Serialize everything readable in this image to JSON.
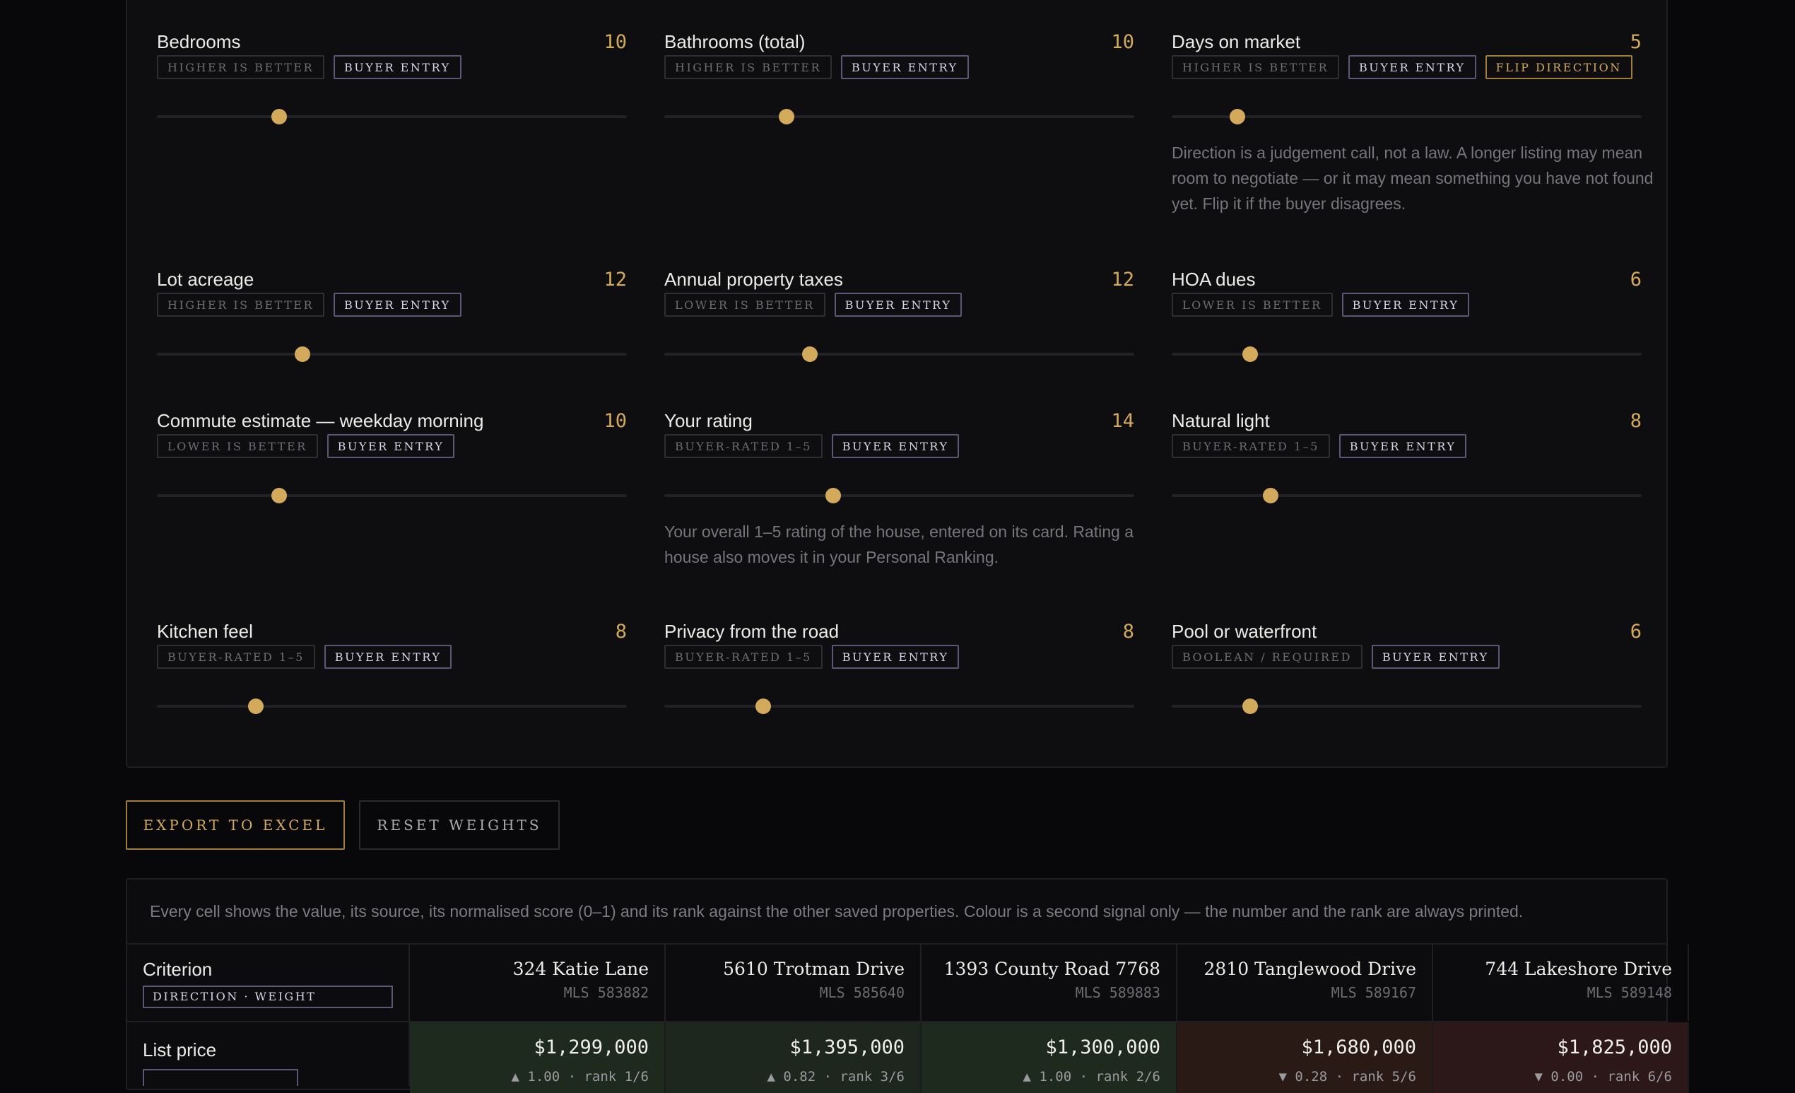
{
  "criteria": [
    {
      "name": "Bedrooms",
      "weight": "10",
      "direction_tag": "Higher is better",
      "source_tag": "Buyer entry",
      "slider_value": 0.26
    },
    {
      "name": "Bathrooms (total)",
      "weight": "10",
      "direction_tag": "Higher is better",
      "source_tag": "Buyer entry",
      "slider_value": 0.26
    },
    {
      "name": "Days on market",
      "weight": "5",
      "direction_tag": "Higher is better",
      "source_tag": "Buyer entry",
      "flip_label": "Flip direction",
      "slider_value": 0.14,
      "note": "Direction is a judgement call, not a law. A longer listing may mean room to negotiate — or it may mean something you have not found yet. Flip it if the buyer disagrees."
    },
    {
      "name": "Lot acreage",
      "weight": "12",
      "direction_tag": "Higher is better",
      "source_tag": "Buyer entry",
      "slider_value": 0.31
    },
    {
      "name": "Annual property taxes",
      "weight": "12",
      "direction_tag": "Lower is better",
      "source_tag": "Buyer entry",
      "slider_value": 0.31
    },
    {
      "name": "HOA dues",
      "weight": "6",
      "direction_tag": "Lower is better",
      "source_tag": "Buyer entry",
      "slider_value": 0.167
    },
    {
      "name": "Commute estimate — weekday morning",
      "weight": "10",
      "direction_tag": "Lower is better",
      "source_tag": "Buyer entry",
      "slider_value": 0.26
    },
    {
      "name": "Your rating",
      "weight": "14",
      "direction_tag": "Buyer-rated 1–5",
      "source_tag": "Buyer entry",
      "slider_value": 0.36,
      "note": "Your overall 1–5 rating of the house, entered on its card. Rating a house also moves it in your Personal Ranking."
    },
    {
      "name": "Natural light",
      "weight": "8",
      "direction_tag": "Buyer-rated 1–5",
      "source_tag": "Buyer entry",
      "slider_value": 0.21
    },
    {
      "name": "Kitchen feel",
      "weight": "8",
      "direction_tag": "Buyer-rated 1–5",
      "source_tag": "Buyer entry",
      "slider_value": 0.21
    },
    {
      "name": "Privacy from the road",
      "weight": "8",
      "direction_tag": "Buyer-rated 1–5",
      "source_tag": "Buyer entry",
      "slider_value": 0.21
    },
    {
      "name": "Pool or waterfront",
      "weight": "6",
      "direction_tag": "Boolean / required",
      "source_tag": "Buyer entry",
      "slider_value": 0.167
    }
  ],
  "actions": {
    "export_label": "Export to Excel",
    "reset_label": "Reset weights"
  },
  "comparison": {
    "intro": "Every cell shows the value, its source, its normalised score (0–1) and its rank against the other saved properties. Colour is a second signal only — the number and the rank are always printed.",
    "criterion_header": "Criterion",
    "criterion_subheader": "Direction · Weight",
    "properties": [
      {
        "name": "324 Katie Lane",
        "mls": "MLS 583882"
      },
      {
        "name": "5610 Trotman Drive",
        "mls": "MLS 585640"
      },
      {
        "name": "1393 County Road 7768",
        "mls": "MLS 589883"
      },
      {
        "name": "2810 Tanglewood Drive",
        "mls": "MLS 589167"
      },
      {
        "name": "744 Lakeshore Drive",
        "mls": "MLS 589148"
      }
    ],
    "rows": [
      {
        "label": "List price",
        "cells": [
          {
            "value": "$1,299,000",
            "score": "▲ 1.00 · rank 1/6",
            "tone": "good",
            "color": "#1f2a1f"
          },
          {
            "value": "$1,395,000",
            "score": "▲ 0.82 · rank 3/6",
            "tone": "good",
            "color": "#1e271e"
          },
          {
            "value": "$1,300,000",
            "score": "▲ 1.00 · rank 2/6",
            "tone": "good",
            "color": "#1f2a1f"
          },
          {
            "value": "$1,680,000",
            "score": "▼ 0.28 · rank 5/6",
            "tone": "bad",
            "color": "#2a1a16"
          },
          {
            "value": "$1,825,000",
            "score": "▼ 0.00 · rank 6/6",
            "tone": "bad",
            "color": "#2c1818"
          }
        ]
      }
    ]
  },
  "colors": {
    "accent": "#d3aa5c",
    "buyer_tag": "#5c5774",
    "good": "#1f2a1f",
    "bad": "#2c1818"
  }
}
